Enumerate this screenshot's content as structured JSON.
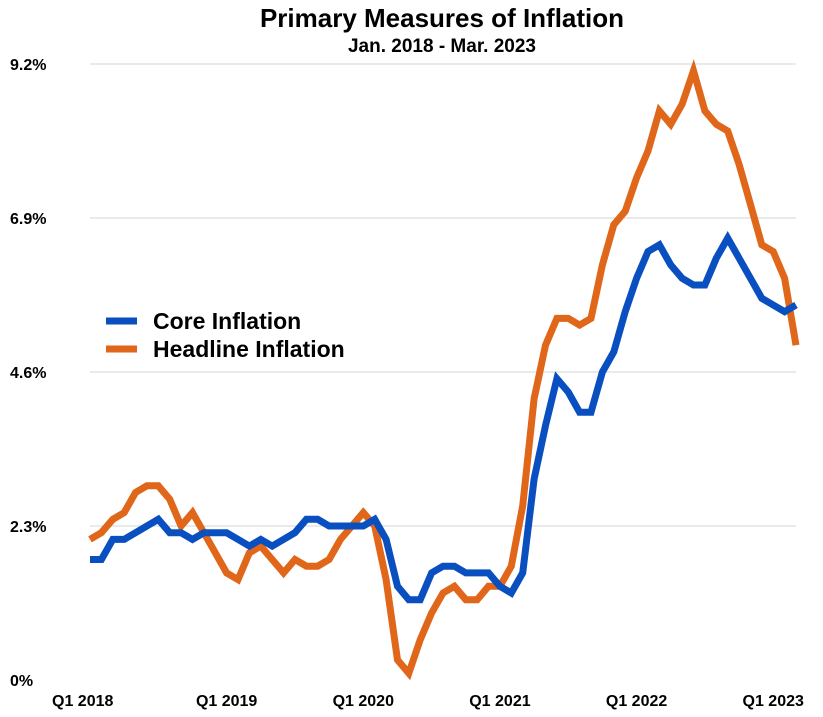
{
  "chart_data": {
    "type": "line",
    "title": "Primary Measures of Inflation",
    "subtitle": "Jan. 2018 - Mar. 2023",
    "xlabel": "",
    "ylabel": "",
    "ylim": [
      0,
      9.2
    ],
    "yticks": [
      0,
      2.3,
      4.6,
      6.9,
      9.2
    ],
    "ytick_labels": [
      "0%",
      "2.3%",
      "4.6%",
      "6.9%",
      "9.2%"
    ],
    "xticks": [
      0,
      12,
      24,
      36,
      48,
      60
    ],
    "xtick_labels": [
      "Q1 2018",
      "Q1 2019",
      "Q1 2020",
      "Q1 2021",
      "Q1 2022",
      "Q1 2023"
    ],
    "x_range": [
      0,
      62
    ],
    "grid": true,
    "legend_placement": "center-left",
    "series": [
      {
        "name": "Core Inflation",
        "color": "#0a4fc0",
        "values": [
          1.8,
          1.8,
          2.1,
          2.1,
          2.2,
          2.3,
          2.4,
          2.2,
          2.2,
          2.1,
          2.2,
          2.2,
          2.2,
          2.1,
          2.0,
          2.1,
          2.0,
          2.1,
          2.2,
          2.4,
          2.4,
          2.3,
          2.3,
          2.3,
          2.3,
          2.4,
          2.1,
          1.4,
          1.2,
          1.2,
          1.6,
          1.7,
          1.7,
          1.6,
          1.6,
          1.6,
          1.4,
          1.3,
          1.6,
          3.0,
          3.8,
          4.5,
          4.3,
          4.0,
          4.0,
          4.6,
          4.9,
          5.5,
          6.0,
          6.4,
          6.5,
          6.2,
          6.0,
          5.9,
          5.9,
          6.3,
          6.6,
          6.3,
          6.0,
          5.7,
          5.6,
          5.5,
          5.6
        ]
      },
      {
        "name": "Headline Inflation",
        "color": "#e0661a",
        "values": [
          2.1,
          2.2,
          2.4,
          2.5,
          2.8,
          2.9,
          2.9,
          2.7,
          2.3,
          2.5,
          2.2,
          1.9,
          1.6,
          1.5,
          1.9,
          2.0,
          1.8,
          1.6,
          1.8,
          1.7,
          1.7,
          1.8,
          2.1,
          2.3,
          2.5,
          2.3,
          1.5,
          0.3,
          0.1,
          0.6,
          1.0,
          1.3,
          1.4,
          1.2,
          1.2,
          1.4,
          1.4,
          1.7,
          2.6,
          4.2,
          5.0,
          5.4,
          5.4,
          5.3,
          5.4,
          6.2,
          6.8,
          7.0,
          7.5,
          7.9,
          8.5,
          8.3,
          8.6,
          9.1,
          8.5,
          8.3,
          8.2,
          7.7,
          7.1,
          6.5,
          6.4,
          6.0,
          5.0
        ]
      }
    ]
  }
}
